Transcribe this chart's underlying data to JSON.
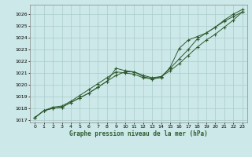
{
  "title": "Graphe pression niveau de la mer (hPa)",
  "bg_color": "#cce8e8",
  "grid_color": "#aacccc",
  "line_color": "#2d5a2d",
  "xlim": [
    -0.5,
    23.5
  ],
  "ylim": [
    1016.8,
    1026.8
  ],
  "xticks": [
    0,
    1,
    2,
    3,
    4,
    5,
    6,
    7,
    8,
    9,
    10,
    11,
    12,
    13,
    14,
    15,
    16,
    17,
    18,
    19,
    20,
    21,
    22,
    23
  ],
  "yticks": [
    1017,
    1018,
    1019,
    1020,
    1021,
    1022,
    1023,
    1024,
    1025,
    1026
  ],
  "x": [
    0,
    1,
    2,
    3,
    4,
    5,
    6,
    7,
    8,
    9,
    10,
    11,
    12,
    13,
    14,
    15,
    16,
    17,
    18,
    19,
    20,
    21,
    22,
    23
  ],
  "y_line1": [
    1017.2,
    1017.8,
    1018.0,
    1018.1,
    1018.5,
    1018.9,
    1019.3,
    1019.8,
    1020.3,
    1020.8,
    1021.1,
    1021.1,
    1020.8,
    1020.6,
    1020.7,
    1021.2,
    1021.8,
    1022.5,
    1023.2,
    1023.8,
    1024.3,
    1024.9,
    1025.5,
    1026.2
  ],
  "y_line2": [
    1017.2,
    1017.8,
    1018.0,
    1018.1,
    1018.5,
    1018.9,
    1019.3,
    1019.8,
    1020.3,
    1021.4,
    1021.2,
    1021.1,
    1020.7,
    1020.5,
    1020.6,
    1021.5,
    1023.1,
    1023.8,
    1024.1,
    1024.4,
    1024.9,
    1025.4,
    1025.8,
    1026.2
  ],
  "y_line3": [
    1017.2,
    1017.8,
    1018.1,
    1018.2,
    1018.6,
    1019.1,
    1019.6,
    1020.1,
    1020.6,
    1021.1,
    1021.0,
    1020.9,
    1020.6,
    1020.5,
    1020.7,
    1021.4,
    1022.2,
    1023.0,
    1023.9,
    1024.4,
    1024.9,
    1025.5,
    1026.0,
    1026.4
  ]
}
